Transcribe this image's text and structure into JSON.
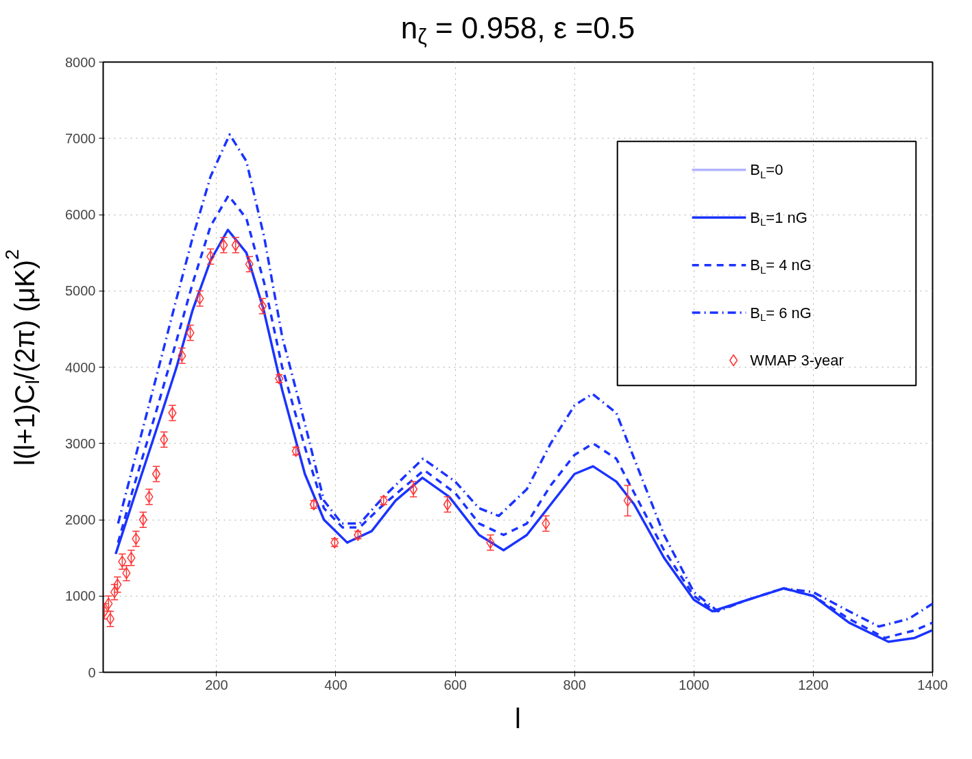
{
  "chart_data": {
    "type": "line",
    "title": "n$_{ζ}$ = 0.958, ε =0.5",
    "xlabel": "l",
    "ylabel": "l(l+1)C$_{l}$/(2π) (μK)$^{2}$",
    "xlim": [
      10,
      1400
    ],
    "ylim": [
      0,
      8000
    ],
    "xticks": [
      200,
      400,
      600,
      800,
      1000,
      1200,
      1400
    ],
    "yticks": [
      0,
      1000,
      2000,
      3000,
      4000,
      5000,
      6000,
      7000,
      8000
    ],
    "grid": true,
    "legend": "top right",
    "series": [
      {
        "name": "B$_{L}$=0",
        "color": "#b3b3ff",
        "line_style": "solid"
      },
      {
        "name": "B$_{L}$=1 nG",
        "color": "#1a33ff",
        "line_style": "solid",
        "x": [
          31,
          60,
          100,
          133,
          160,
          190,
          219,
          250,
          279,
          310,
          348,
          380,
          419,
          460,
          500,
          545,
          590,
          640,
          681,
          720,
          760,
          800,
          831,
          870,
          900,
          950,
          1000,
          1031,
          1090,
          1151,
          1200,
          1260,
          1326,
          1370,
          1399
        ],
        "values": [
          1550,
          2250,
          3200,
          4000,
          4750,
          5400,
          5800,
          5500,
          4750,
          3700,
          2600,
          2000,
          1700,
          1850,
          2250,
          2550,
          2300,
          1800,
          1600,
          1800,
          2200,
          2600,
          2700,
          2500,
          2200,
          1500,
          950,
          800,
          950,
          1100,
          1000,
          650,
          400,
          450,
          550
        ]
      },
      {
        "name": "B$_{L}$= 4 nG",
        "color": "#1a33ff",
        "line_style": "dashed",
        "x": [
          35,
          60,
          100,
          133,
          160,
          190,
          220,
          250,
          280,
          310,
          350,
          380,
          411,
          440,
          480,
          548,
          600,
          640,
          681,
          720,
          760,
          800,
          831,
          870,
          900,
          950,
          1000,
          1035,
          1090,
          1150,
          1200,
          1260,
          1320,
          1370,
          1400
        ],
        "values": [
          1700,
          2400,
          3450,
          4350,
          5100,
          5850,
          6250,
          5950,
          5100,
          4000,
          2900,
          2150,
          1900,
          1900,
          2200,
          2650,
          2350,
          1950,
          1800,
          1950,
          2450,
          2850,
          3000,
          2800,
          2350,
          1600,
          1000,
          800,
          950,
          1100,
          1000,
          700,
          450,
          550,
          650
        ]
      },
      {
        "name": "B$_{L}$= 6 nG",
        "color": "#1a33ff",
        "line_style": "dashdot",
        "x": [
          35,
          60,
          100,
          133,
          160,
          190,
          222,
          250,
          280,
          310,
          350,
          380,
          410,
          440,
          480,
          546,
          600,
          640,
          673,
          720,
          760,
          800,
          830,
          870,
          900,
          950,
          1000,
          1040,
          1090,
          1150,
          1200,
          1260,
          1310,
          1360,
          1400
        ],
        "values": [
          1950,
          2700,
          3900,
          4900,
          5700,
          6500,
          7050,
          6700,
          5700,
          4400,
          3200,
          2250,
          1950,
          1950,
          2300,
          2800,
          2500,
          2150,
          2050,
          2400,
          3000,
          3500,
          3650,
          3400,
          2800,
          1800,
          1050,
          800,
          950,
          1100,
          1050,
          800,
          600,
          700,
          900
        ]
      },
      {
        "name": "WMAP 3-year",
        "type": "scatter",
        "color": "#ff3333",
        "marker": "diamond",
        "x": [
          12,
          19,
          22,
          29,
          34,
          42,
          49,
          57,
          65,
          77,
          87,
          99,
          112,
          126,
          142,
          156,
          172,
          190,
          212,
          232,
          255,
          277,
          305,
          333,
          363,
          398,
          437,
          480,
          530,
          587,
          659,
          752,
          889
        ],
        "values": [
          800,
          900,
          700,
          1050,
          1150,
          1450,
          1300,
          1500,
          1750,
          2000,
          2300,
          2600,
          3050,
          3400,
          4150,
          4450,
          4900,
          5450,
          5600,
          5600,
          5350,
          4800,
          3850,
          2900,
          2200,
          1700,
          1800,
          2250,
          2400,
          2200,
          1700,
          1950,
          2250
        ],
        "errors": [
          100,
          100,
          100,
          100,
          100,
          100,
          100,
          100,
          100,
          100,
          100,
          100,
          100,
          100,
          100,
          100,
          100,
          100,
          100,
          100,
          100,
          100,
          50,
          50,
          50,
          50,
          50,
          50,
          100,
          100,
          100,
          100,
          200
        ]
      }
    ]
  }
}
